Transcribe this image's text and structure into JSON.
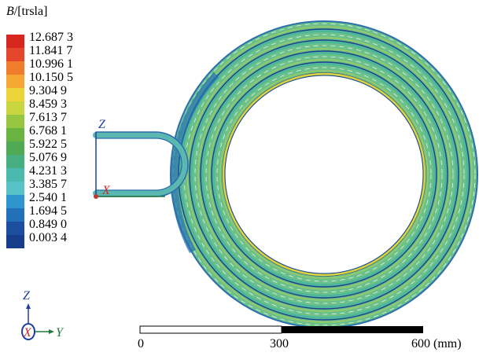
{
  "legend": {
    "title_symbol": "B",
    "title_unit": "/[trsla]",
    "entries": [
      {
        "label": "12.687 3",
        "color": "#d7261e"
      },
      {
        "label": "11.841 7",
        "color": "#e3462a"
      },
      {
        "label": "10.996 1",
        "color": "#ef7d2b"
      },
      {
        "label": "10.150 5",
        "color": "#f5a733"
      },
      {
        "label": "9.304 9",
        "color": "#ecd33a"
      },
      {
        "label": "8.459 3",
        "color": "#c9d63f"
      },
      {
        "label": "7.613 7",
        "color": "#96c53f"
      },
      {
        "label": "6.768 1",
        "color": "#69b441"
      },
      {
        "label": "5.922 5",
        "color": "#4faa55"
      },
      {
        "label": "5.076 9",
        "color": "#47ae82"
      },
      {
        "label": "4.231 3",
        "color": "#4bb9ad"
      },
      {
        "label": "3.385 7",
        "color": "#59c2c6"
      },
      {
        "label": "2.540 1",
        "color": "#2f95cd"
      },
      {
        "label": "1.694 5",
        "color": "#2270b8"
      },
      {
        "label": "0.849 0",
        "color": "#1b4f9e"
      },
      {
        "label": "0.003 4",
        "color": "#173e8a"
      }
    ]
  },
  "triad_upper": {
    "z_label": "Z",
    "x_label": "X"
  },
  "triad_lower": {
    "z_label": "Z",
    "x_label": "X",
    "y_label": "Y"
  },
  "scale_bar": {
    "labels": [
      "0",
      "300",
      "600 (mm)"
    ]
  }
}
